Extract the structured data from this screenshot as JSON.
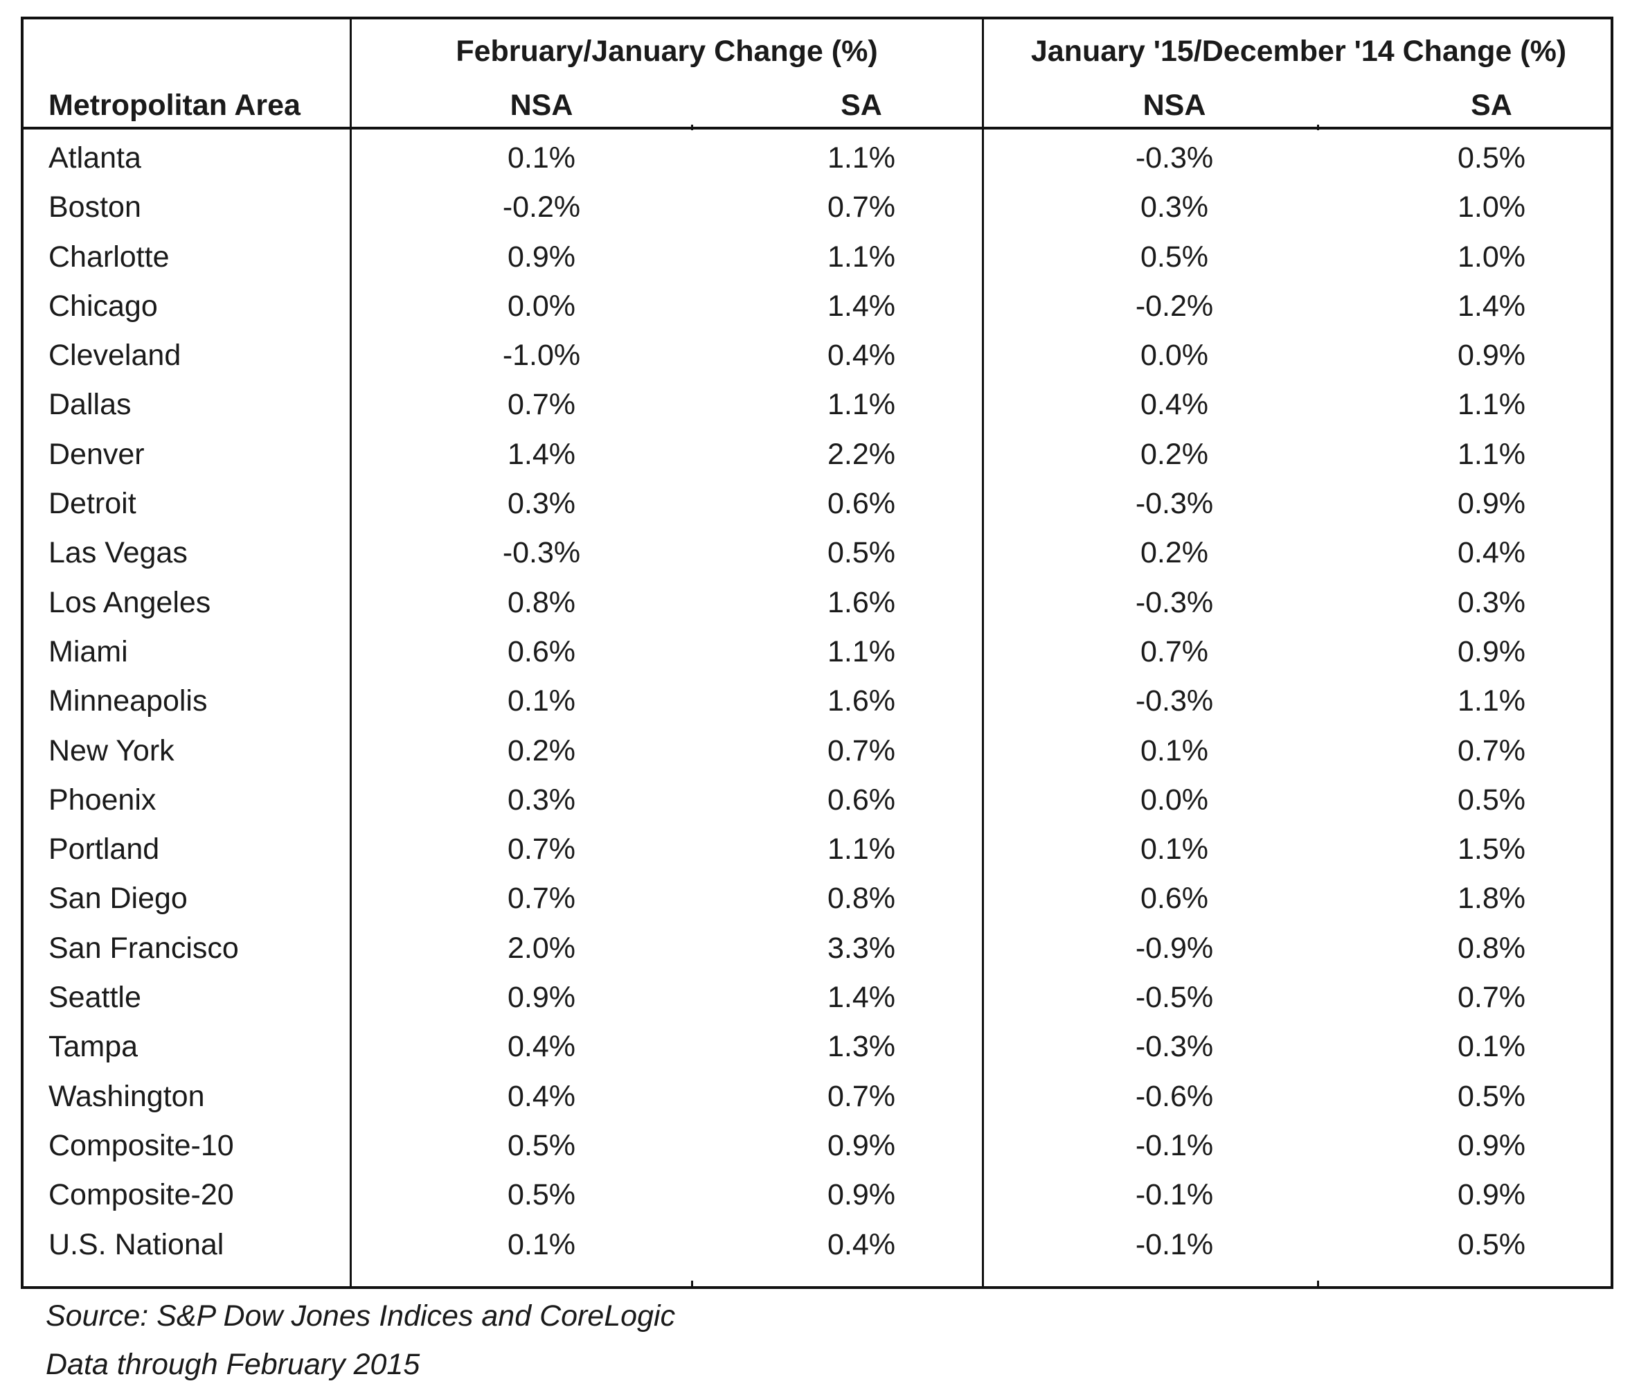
{
  "table": {
    "group_headers": [
      "February/January Change (%)",
      "January '15/December '14 Change (%)"
    ],
    "column_headers": [
      "Metropolitan Area",
      "NSA",
      "SA",
      "NSA",
      "SA"
    ],
    "rows": [
      [
        "Atlanta",
        "0.1%",
        "1.1%",
        "-0.3%",
        "0.5%"
      ],
      [
        "Boston",
        "-0.2%",
        "0.7%",
        "0.3%",
        "1.0%"
      ],
      [
        "Charlotte",
        "0.9%",
        "1.1%",
        "0.5%",
        "1.0%"
      ],
      [
        "Chicago",
        "0.0%",
        "1.4%",
        "-0.2%",
        "1.4%"
      ],
      [
        "Cleveland",
        "-1.0%",
        "0.4%",
        "0.0%",
        "0.9%"
      ],
      [
        "Dallas",
        "0.7%",
        "1.1%",
        "0.4%",
        "1.1%"
      ],
      [
        "Denver",
        "1.4%",
        "2.2%",
        "0.2%",
        "1.1%"
      ],
      [
        "Detroit",
        "0.3%",
        "0.6%",
        "-0.3%",
        "0.9%"
      ],
      [
        "Las Vegas",
        "-0.3%",
        "0.5%",
        "0.2%",
        "0.4%"
      ],
      [
        "Los Angeles",
        "0.8%",
        "1.6%",
        "-0.3%",
        "0.3%"
      ],
      [
        "Miami",
        "0.6%",
        "1.1%",
        "0.7%",
        "0.9%"
      ],
      [
        "Minneapolis",
        "0.1%",
        "1.6%",
        "-0.3%",
        "1.1%"
      ],
      [
        "New York",
        "0.2%",
        "0.7%",
        "0.1%",
        "0.7%"
      ],
      [
        "Phoenix",
        "0.3%",
        "0.6%",
        "0.0%",
        "0.5%"
      ],
      [
        "Portland",
        "0.7%",
        "1.1%",
        "0.1%",
        "1.5%"
      ],
      [
        "San Diego",
        "0.7%",
        "0.8%",
        "0.6%",
        "1.8%"
      ],
      [
        "San Francisco",
        "2.0%",
        "3.3%",
        "-0.9%",
        "0.8%"
      ],
      [
        "Seattle",
        "0.9%",
        "1.4%",
        "-0.5%",
        "0.7%"
      ],
      [
        "Tampa",
        "0.4%",
        "1.3%",
        "-0.3%",
        "0.1%"
      ],
      [
        "Washington",
        "0.4%",
        "0.7%",
        "-0.6%",
        "0.5%"
      ],
      [
        "Composite-10",
        "0.5%",
        "0.9%",
        "-0.1%",
        "0.9%"
      ],
      [
        "Composite-20",
        "0.5%",
        "0.9%",
        "-0.1%",
        "0.9%"
      ],
      [
        "U.S. National",
        "0.1%",
        "0.4%",
        "-0.1%",
        "0.5%"
      ]
    ]
  },
  "notes": {
    "source": "Source: S&P Dow Jones Indices and CoreLogic",
    "data_through": "Data through February 2015"
  }
}
